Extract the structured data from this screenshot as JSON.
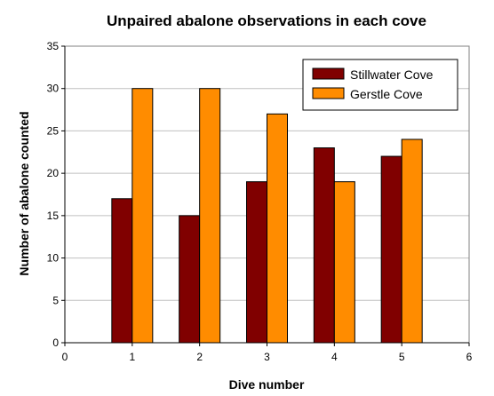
{
  "chart_data": {
    "type": "bar",
    "title": "Unpaired abalone observations in each cove",
    "xlabel": "Dive number",
    "ylabel": "Number of abalone counted",
    "x": [
      1,
      2,
      3,
      4,
      5
    ],
    "xlim": [
      0,
      6
    ],
    "xticks": [
      0,
      1,
      2,
      3,
      4,
      5,
      6
    ],
    "ylim": [
      0,
      35
    ],
    "yticks": [
      0,
      5,
      10,
      15,
      20,
      25,
      30,
      35
    ],
    "grid": true,
    "legend_position": "top-right",
    "series": [
      {
        "name": "Stillwater Cove",
        "color": "#800000",
        "values": [
          17,
          15,
          19,
          23,
          22
        ]
      },
      {
        "name": "Gerstle Cove",
        "color": "#ff8c00",
        "values": [
          30,
          30,
          27,
          19,
          24
        ]
      }
    ]
  }
}
